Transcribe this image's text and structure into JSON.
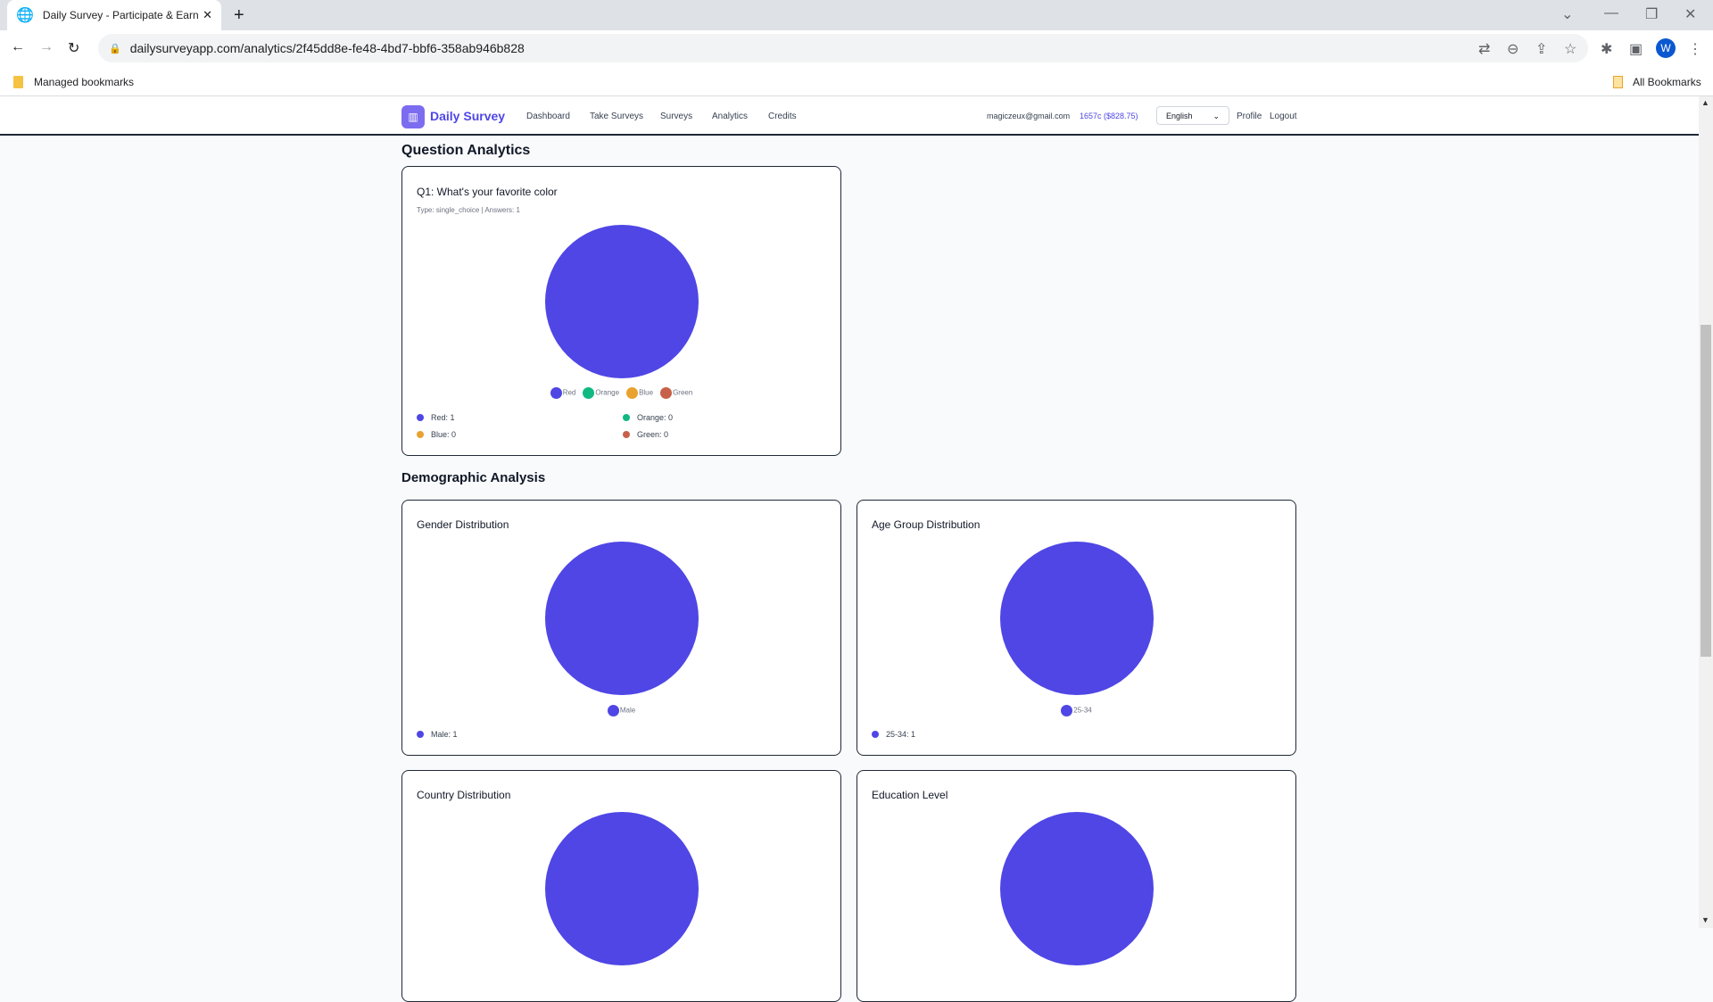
{
  "browser": {
    "tab_title": "Daily Survey - Participate & Earn",
    "url": "dailysurveyapp.com/analytics/2f45dd8e-fe48-4bd7-bbf6-358ab946b828",
    "bookmarks_label": "Managed bookmarks",
    "all_bookmarks": "All Bookmarks",
    "profile_initial": "W"
  },
  "header": {
    "brand": "Daily Survey",
    "nav": [
      "Dashboard",
      "Take Surveys",
      "Surveys",
      "Analytics",
      "Credits"
    ],
    "email": "magiczeux@gmail.com",
    "credits": "1657c ($828.75)",
    "language": "English",
    "profile": "Profile",
    "logout": "Logout",
    "hidden_heading": "Question Analytics"
  },
  "colors": {
    "accent": "#4f46e5",
    "red": "#4f46e5",
    "orange": "#10b981",
    "blue": "#e9a22f",
    "green": "#c8614a"
  },
  "question": {
    "title": "Q1: What's your favorite color",
    "meta": "Type: single_choice | Answers: 1",
    "chart_data": {
      "type": "pie",
      "categories": [
        "Red",
        "Orange",
        "Blue",
        "Green"
      ],
      "values": [
        1,
        0,
        0,
        0
      ]
    },
    "counts": [
      "Red: 1",
      "Orange: 0",
      "Blue: 0",
      "Green: 0"
    ]
  },
  "demographics": {
    "heading": "Demographic Analysis",
    "gender": {
      "title": "Gender Distribution",
      "chart_data": {
        "type": "pie",
        "categories": [
          "Male"
        ],
        "values": [
          1
        ]
      },
      "count": "Male: 1"
    },
    "age": {
      "title": "Age Group Distribution",
      "chart_data": {
        "type": "pie",
        "categories": [
          "25-34"
        ],
        "values": [
          1
        ]
      },
      "count": "25-34: 1"
    },
    "country": {
      "title": "Country Distribution"
    },
    "education": {
      "title": "Education Level"
    }
  }
}
